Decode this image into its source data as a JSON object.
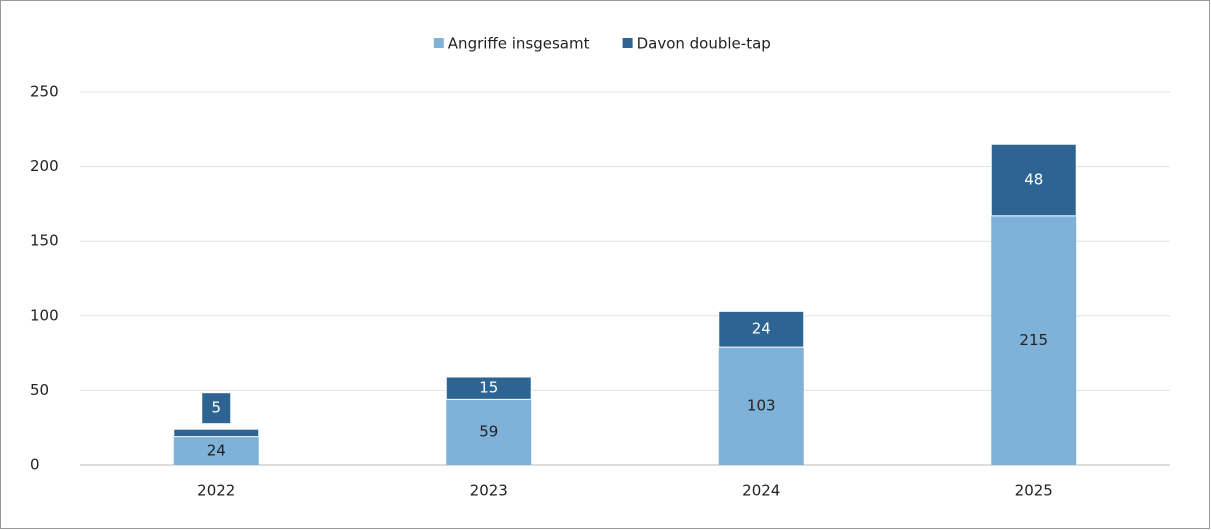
{
  "chart_data": {
    "type": "bar",
    "categories": [
      "2022",
      "2023",
      "2024",
      "2025"
    ],
    "series": [
      {
        "name": "Angriffe insgesamt",
        "color": "#7fb2d9",
        "values": [
          24,
          59,
          103,
          215
        ]
      },
      {
        "name": "Davon double-tap",
        "color": "#2e6491",
        "values": [
          5,
          15,
          24,
          48
        ]
      }
    ],
    "ylim": [
      0,
      250
    ],
    "yticks": [
      0,
      50,
      100,
      150,
      200,
      250
    ],
    "grid": true,
    "legend": "top"
  }
}
